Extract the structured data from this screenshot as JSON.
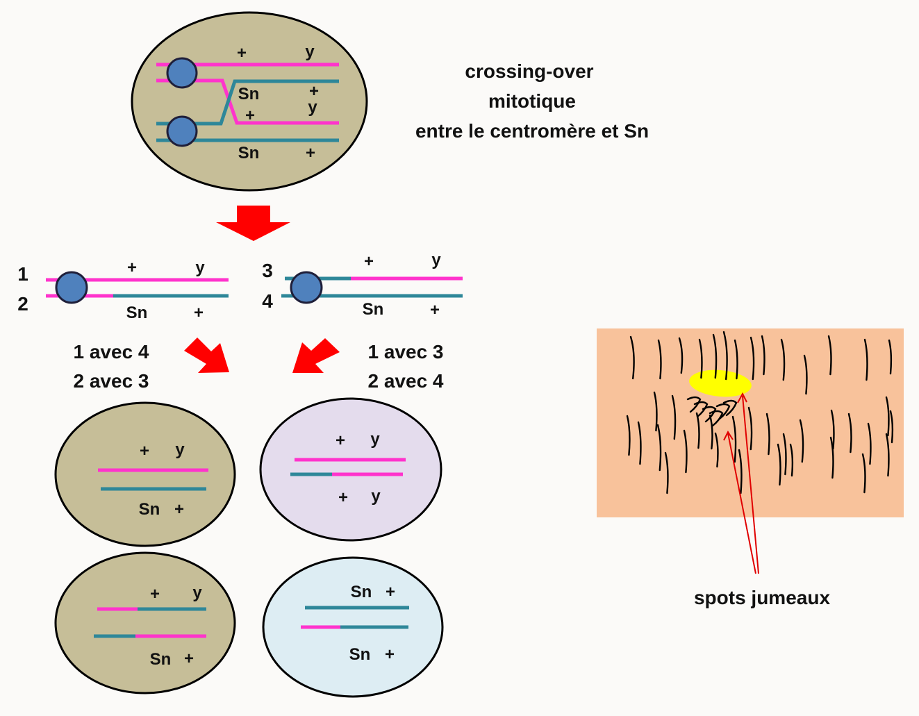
{
  "caption": {
    "line1": "crossing-over",
    "line2": "mitotique",
    "line3": "entre le centromère et Sn"
  },
  "alleles": {
    "plus": "+",
    "y": "y",
    "sn": "Sn"
  },
  "chromatids": {
    "c1": "1",
    "c2": "2",
    "c3": "3",
    "c4": "4"
  },
  "segregation": {
    "left_line1": "1 avec 4",
    "left_line2": "2 avec 3",
    "right_line1": "1 avec 3",
    "right_line2": "2 avec 4"
  },
  "spots_label": "spots jumeaux",
  "colors": {
    "cell_parent": "#c6be98",
    "cell_lavender": "#e4dced",
    "cell_lightblue": "#ddedf3",
    "chromatid_magenta": "#ff33cc",
    "chromatid_teal": "#2e8799",
    "centromere": "#4f81bd",
    "arrow_red": "#ff0000",
    "tissue": "#f8c29b",
    "spot_yellow": "#ffff00"
  }
}
